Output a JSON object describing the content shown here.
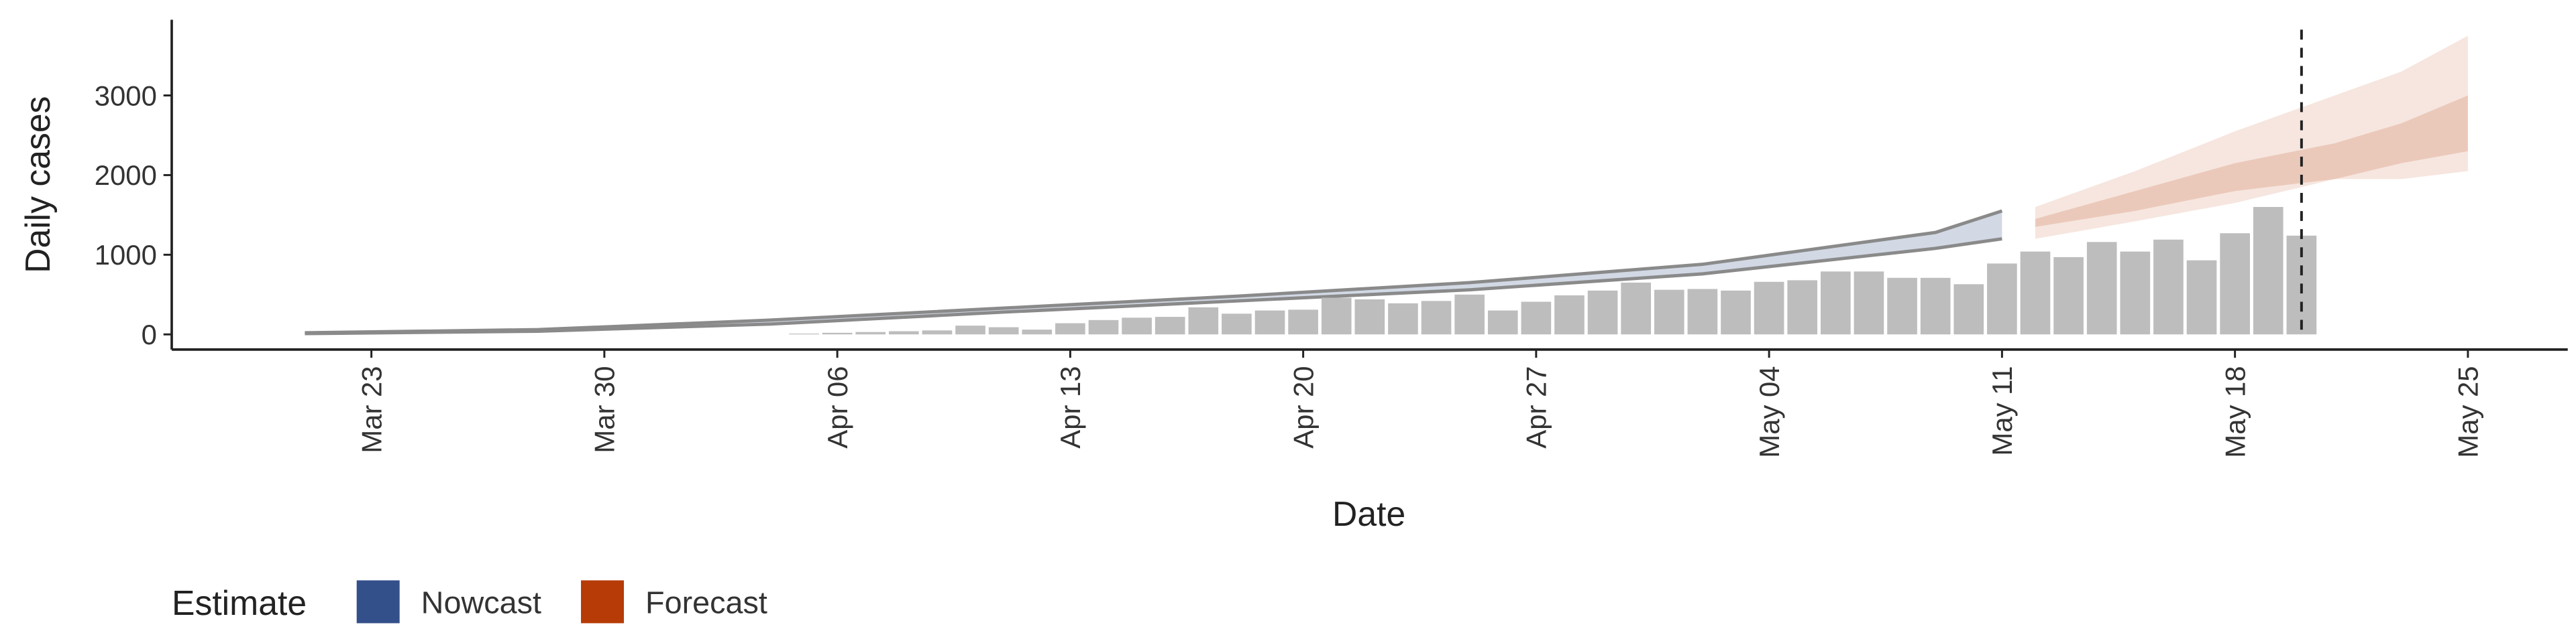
{
  "chart_data": {
    "type": "bar",
    "x_label": "Date",
    "y_label": "Daily cases",
    "legend_title": "Estimate",
    "bar_color": "#bdbdbd",
    "x": [
      "Apr 05",
      "Apr 06",
      "Apr 07",
      "Apr 08",
      "Apr 09",
      "Apr 10",
      "Apr 11",
      "Apr 12",
      "Apr 13",
      "Apr 14",
      "Apr 15",
      "Apr 16",
      "Apr 17",
      "Apr 18",
      "Apr 19",
      "Apr 20",
      "Apr 21",
      "Apr 22",
      "Apr 23",
      "Apr 24",
      "Apr 25",
      "Apr 26",
      "Apr 27",
      "Apr 28",
      "Apr 29",
      "Apr 30",
      "May 01",
      "May 02",
      "May 03",
      "May 04",
      "May 05",
      "May 06",
      "May 07",
      "May 08",
      "May 09",
      "May 10",
      "May 11",
      "May 12",
      "May 13",
      "May 14",
      "May 15",
      "May 16",
      "May 17",
      "May 18",
      "May 19",
      "May 20"
    ],
    "values": [
      10,
      20,
      30,
      40,
      50,
      110,
      90,
      60,
      140,
      180,
      210,
      220,
      340,
      260,
      300,
      310,
      460,
      440,
      390,
      420,
      500,
      300,
      410,
      490,
      550,
      650,
      560,
      570,
      550,
      660,
      680,
      790,
      790,
      710,
      710,
      630,
      890,
      1040,
      970,
      1160,
      1040,
      1190,
      930,
      1270,
      1600,
      1240
    ],
    "bands": [
      {
        "name": "Nowcast",
        "color": "#33508a",
        "edge_color": "#8a8a8a",
        "x": [
          "Mar 21",
          "Mar 28",
          "Apr 04",
          "Apr 11",
          "Apr 18",
          "Apr 25",
          "May 02",
          "May 09",
          "May 11"
        ],
        "lower": [
          10,
          40,
          130,
          280,
          420,
          560,
          760,
          1080,
          1200
        ],
        "upper": [
          20,
          60,
          180,
          330,
          480,
          650,
          880,
          1280,
          1550
        ]
      },
      {
        "name": "Forecast",
        "color": "#b63b06",
        "x": [
          "May 12",
          "May 15",
          "May 18",
          "May 21",
          "May 23",
          "May 25"
        ],
        "lower": [
          1200,
          1420,
          1650,
          1950,
          1950,
          2050
        ],
        "upper": [
          1600,
          2050,
          2550,
          3000,
          3300,
          3750
        ],
        "inner_lower": [
          1350,
          1550,
          1800,
          1950,
          2150,
          2300
        ],
        "inner_upper": [
          1450,
          1800,
          2150,
          2400,
          2650,
          3000
        ]
      }
    ],
    "vline": "May 20",
    "xlim": [
      "Mar 17",
      "May 28"
    ],
    "xticks": [
      "Mar 23",
      "Mar 30",
      "Apr 06",
      "Apr 13",
      "Apr 20",
      "Apr 27",
      "May 04",
      "May 11",
      "May 18",
      "May 25"
    ],
    "ylim": [
      -190,
      3950
    ],
    "yticks": [
      0,
      1000,
      2000,
      3000
    ]
  }
}
